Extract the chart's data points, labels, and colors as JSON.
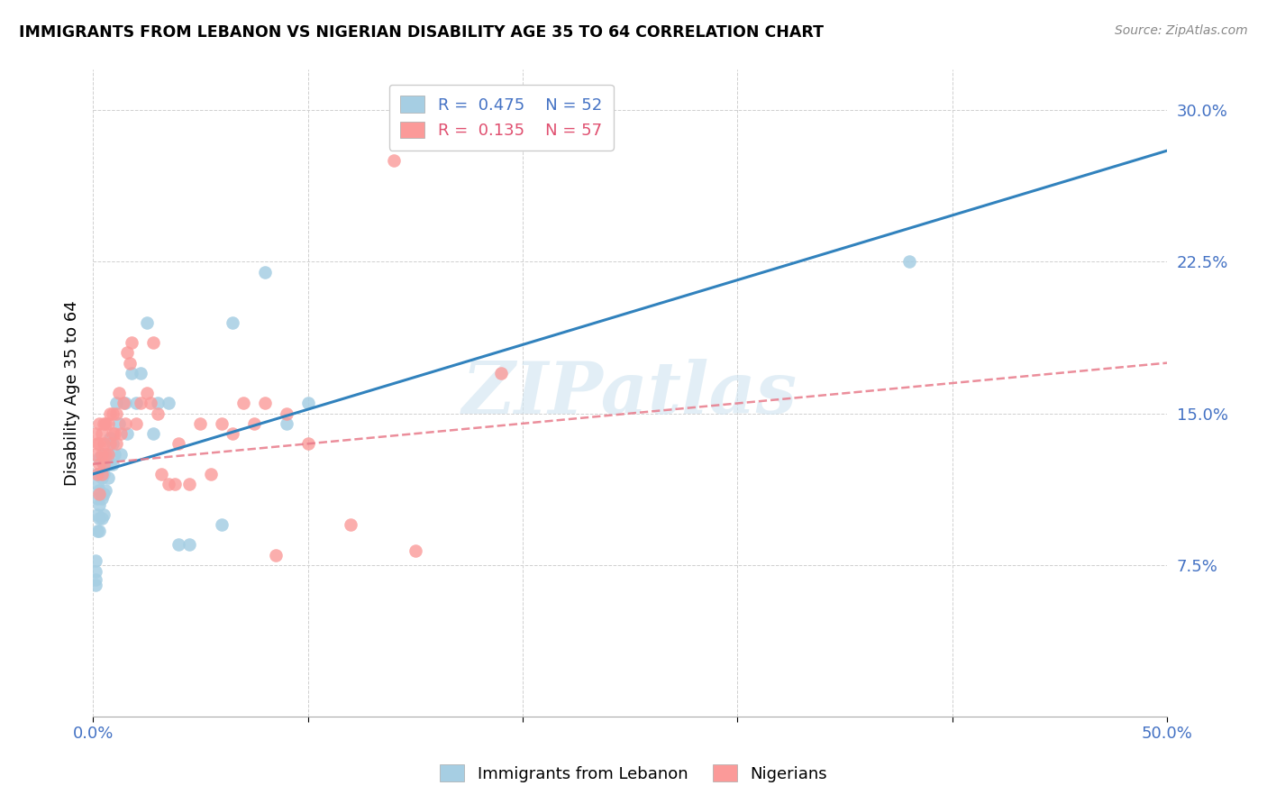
{
  "title": "IMMIGRANTS FROM LEBANON VS NIGERIAN DISABILITY AGE 35 TO 64 CORRELATION CHART",
  "source": "Source: ZipAtlas.com",
  "ylabel_label": "Disability Age 35 to 64",
  "x_min": 0.0,
  "x_max": 0.5,
  "y_min": 0.0,
  "y_max": 0.32,
  "x_ticks": [
    0.0,
    0.1,
    0.2,
    0.3,
    0.4,
    0.5
  ],
  "x_tick_labels": [
    "0.0%",
    "",
    "",
    "",
    "",
    "50.0%"
  ],
  "y_ticks": [
    0.075,
    0.15,
    0.225,
    0.3
  ],
  "y_tick_labels": [
    "7.5%",
    "15.0%",
    "22.5%",
    "30.0%"
  ],
  "blue_scatter_color": "#a6cee3",
  "pink_scatter_color": "#fb9a99",
  "blue_line_color": "#3182bd",
  "pink_line_color": "#e87a8a",
  "watermark": "ZIPatlas",
  "blue_points_x": [
    0.001,
    0.001,
    0.001,
    0.001,
    0.002,
    0.002,
    0.002,
    0.002,
    0.002,
    0.003,
    0.003,
    0.003,
    0.003,
    0.003,
    0.003,
    0.004,
    0.004,
    0.004,
    0.004,
    0.005,
    0.005,
    0.005,
    0.005,
    0.006,
    0.006,
    0.007,
    0.007,
    0.008,
    0.008,
    0.009,
    0.009,
    0.01,
    0.011,
    0.012,
    0.013,
    0.015,
    0.016,
    0.018,
    0.02,
    0.022,
    0.025,
    0.028,
    0.03,
    0.035,
    0.04,
    0.045,
    0.06,
    0.065,
    0.08,
    0.09,
    0.1,
    0.38
  ],
  "blue_points_y": [
    0.065,
    0.068,
    0.072,
    0.077,
    0.092,
    0.1,
    0.108,
    0.115,
    0.12,
    0.092,
    0.098,
    0.105,
    0.112,
    0.12,
    0.128,
    0.098,
    0.108,
    0.118,
    0.126,
    0.1,
    0.11,
    0.12,
    0.13,
    0.112,
    0.125,
    0.118,
    0.13,
    0.125,
    0.138,
    0.125,
    0.135,
    0.13,
    0.155,
    0.145,
    0.13,
    0.155,
    0.14,
    0.17,
    0.155,
    0.17,
    0.195,
    0.14,
    0.155,
    0.155,
    0.085,
    0.085,
    0.095,
    0.195,
    0.22,
    0.145,
    0.155,
    0.225
  ],
  "pink_points_x": [
    0.001,
    0.001,
    0.002,
    0.002,
    0.003,
    0.003,
    0.003,
    0.003,
    0.004,
    0.004,
    0.004,
    0.005,
    0.005,
    0.005,
    0.006,
    0.006,
    0.007,
    0.007,
    0.008,
    0.008,
    0.009,
    0.009,
    0.01,
    0.011,
    0.011,
    0.012,
    0.013,
    0.014,
    0.015,
    0.016,
    0.017,
    0.018,
    0.02,
    0.022,
    0.025,
    0.027,
    0.028,
    0.03,
    0.032,
    0.035,
    0.038,
    0.04,
    0.045,
    0.05,
    0.055,
    0.06,
    0.065,
    0.07,
    0.075,
    0.08,
    0.085,
    0.09,
    0.1,
    0.12,
    0.14,
    0.15,
    0.19
  ],
  "pink_points_y": [
    0.13,
    0.14,
    0.12,
    0.135,
    0.11,
    0.125,
    0.135,
    0.145,
    0.12,
    0.13,
    0.14,
    0.125,
    0.135,
    0.145,
    0.13,
    0.145,
    0.13,
    0.145,
    0.135,
    0.15,
    0.14,
    0.15,
    0.14,
    0.135,
    0.15,
    0.16,
    0.14,
    0.155,
    0.145,
    0.18,
    0.175,
    0.185,
    0.145,
    0.155,
    0.16,
    0.155,
    0.185,
    0.15,
    0.12,
    0.115,
    0.115,
    0.135,
    0.115,
    0.145,
    0.12,
    0.145,
    0.14,
    0.155,
    0.145,
    0.155,
    0.08,
    0.15,
    0.135,
    0.095,
    0.275,
    0.082,
    0.17
  ]
}
